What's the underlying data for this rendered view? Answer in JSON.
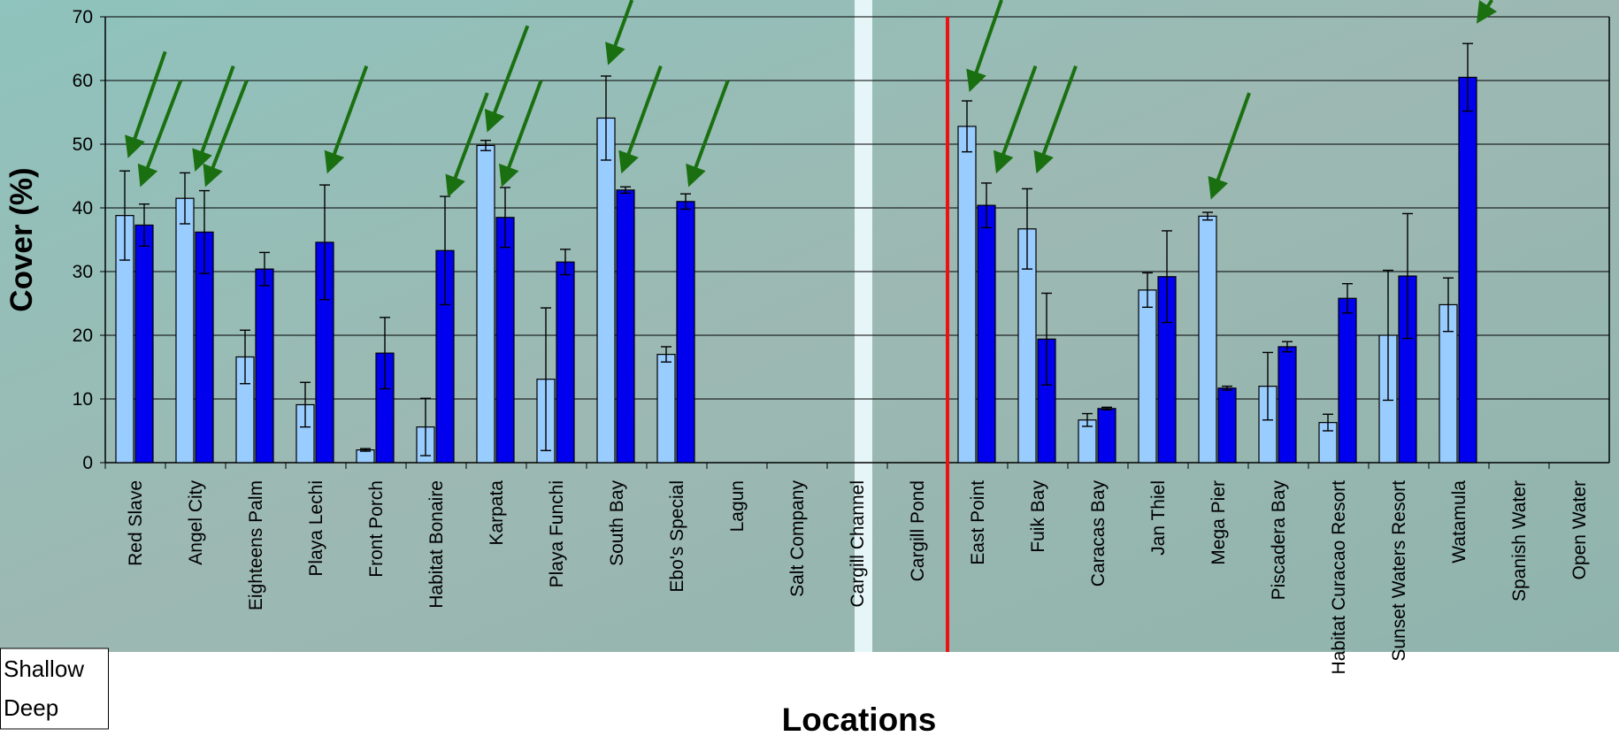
{
  "chart_data": {
    "type": "bar",
    "y_label": "Cover (%)",
    "x_label": "Locations",
    "categories": [
      "Red Slave",
      "Angel City",
      "Eighteens Palm",
      "Playa Lechi",
      "Front Porch",
      "Habitat Bonaire",
      "Karpata",
      "Playa Funchi",
      "South Bay",
      "Ebo's Special",
      "Lagun",
      "Salt Company",
      "Cargill Channel",
      "Cargill Pond",
      "East Point",
      "Fuik Bay",
      "Caracas Bay",
      "Jan Thiel",
      "Mega Pier",
      "Piscadera Bay",
      "Habitat Curacao Resort",
      "Sunset Waters Resort",
      "Watamula",
      "Spanish Water",
      "Open Water"
    ],
    "series": [
      {
        "name": "Shallow",
        "color": "#99ccff",
        "values": [
          38.8,
          41.5,
          16.6,
          9.1,
          2,
          5.6,
          49.8,
          13.1,
          54.1,
          17,
          null,
          null,
          null,
          null,
          52.8,
          36.7,
          6.7,
          27.1,
          38.7,
          12,
          6.3,
          20,
          24.8,
          null,
          null
        ],
        "errors": [
          7,
          4,
          4.2,
          3.5,
          0.2,
          4.5,
          0.8,
          11.2,
          6.6,
          1.2,
          null,
          null,
          null,
          null,
          4,
          6.3,
          1,
          2.7,
          0.6,
          5.3,
          1.3,
          10.2,
          4.2,
          null,
          null
        ]
      },
      {
        "name": "Deep",
        "color": "#0000ee",
        "values": [
          37.3,
          36.2,
          30.4,
          34.6,
          17.2,
          33.3,
          38.5,
          31.5,
          42.8,
          41,
          null,
          null,
          null,
          null,
          40.4,
          19.4,
          8.5,
          29.2,
          11.7,
          18.2,
          25.8,
          29.3,
          60.5,
          null,
          null
        ],
        "errors": [
          3.3,
          6.5,
          2.6,
          9,
          5.6,
          8.5,
          4.7,
          2,
          0.5,
          1.2,
          null,
          null,
          null,
          null,
          3.5,
          7.2,
          0.2,
          7.2,
          0.3,
          0.8,
          2.3,
          9.8,
          5.3,
          null,
          null
        ]
      }
    ],
    "ylim": [
      0,
      70
    ],
    "yticks": [
      0,
      10,
      20,
      30,
      40,
      50,
      60,
      70
    ],
    "grid": true
  }
}
